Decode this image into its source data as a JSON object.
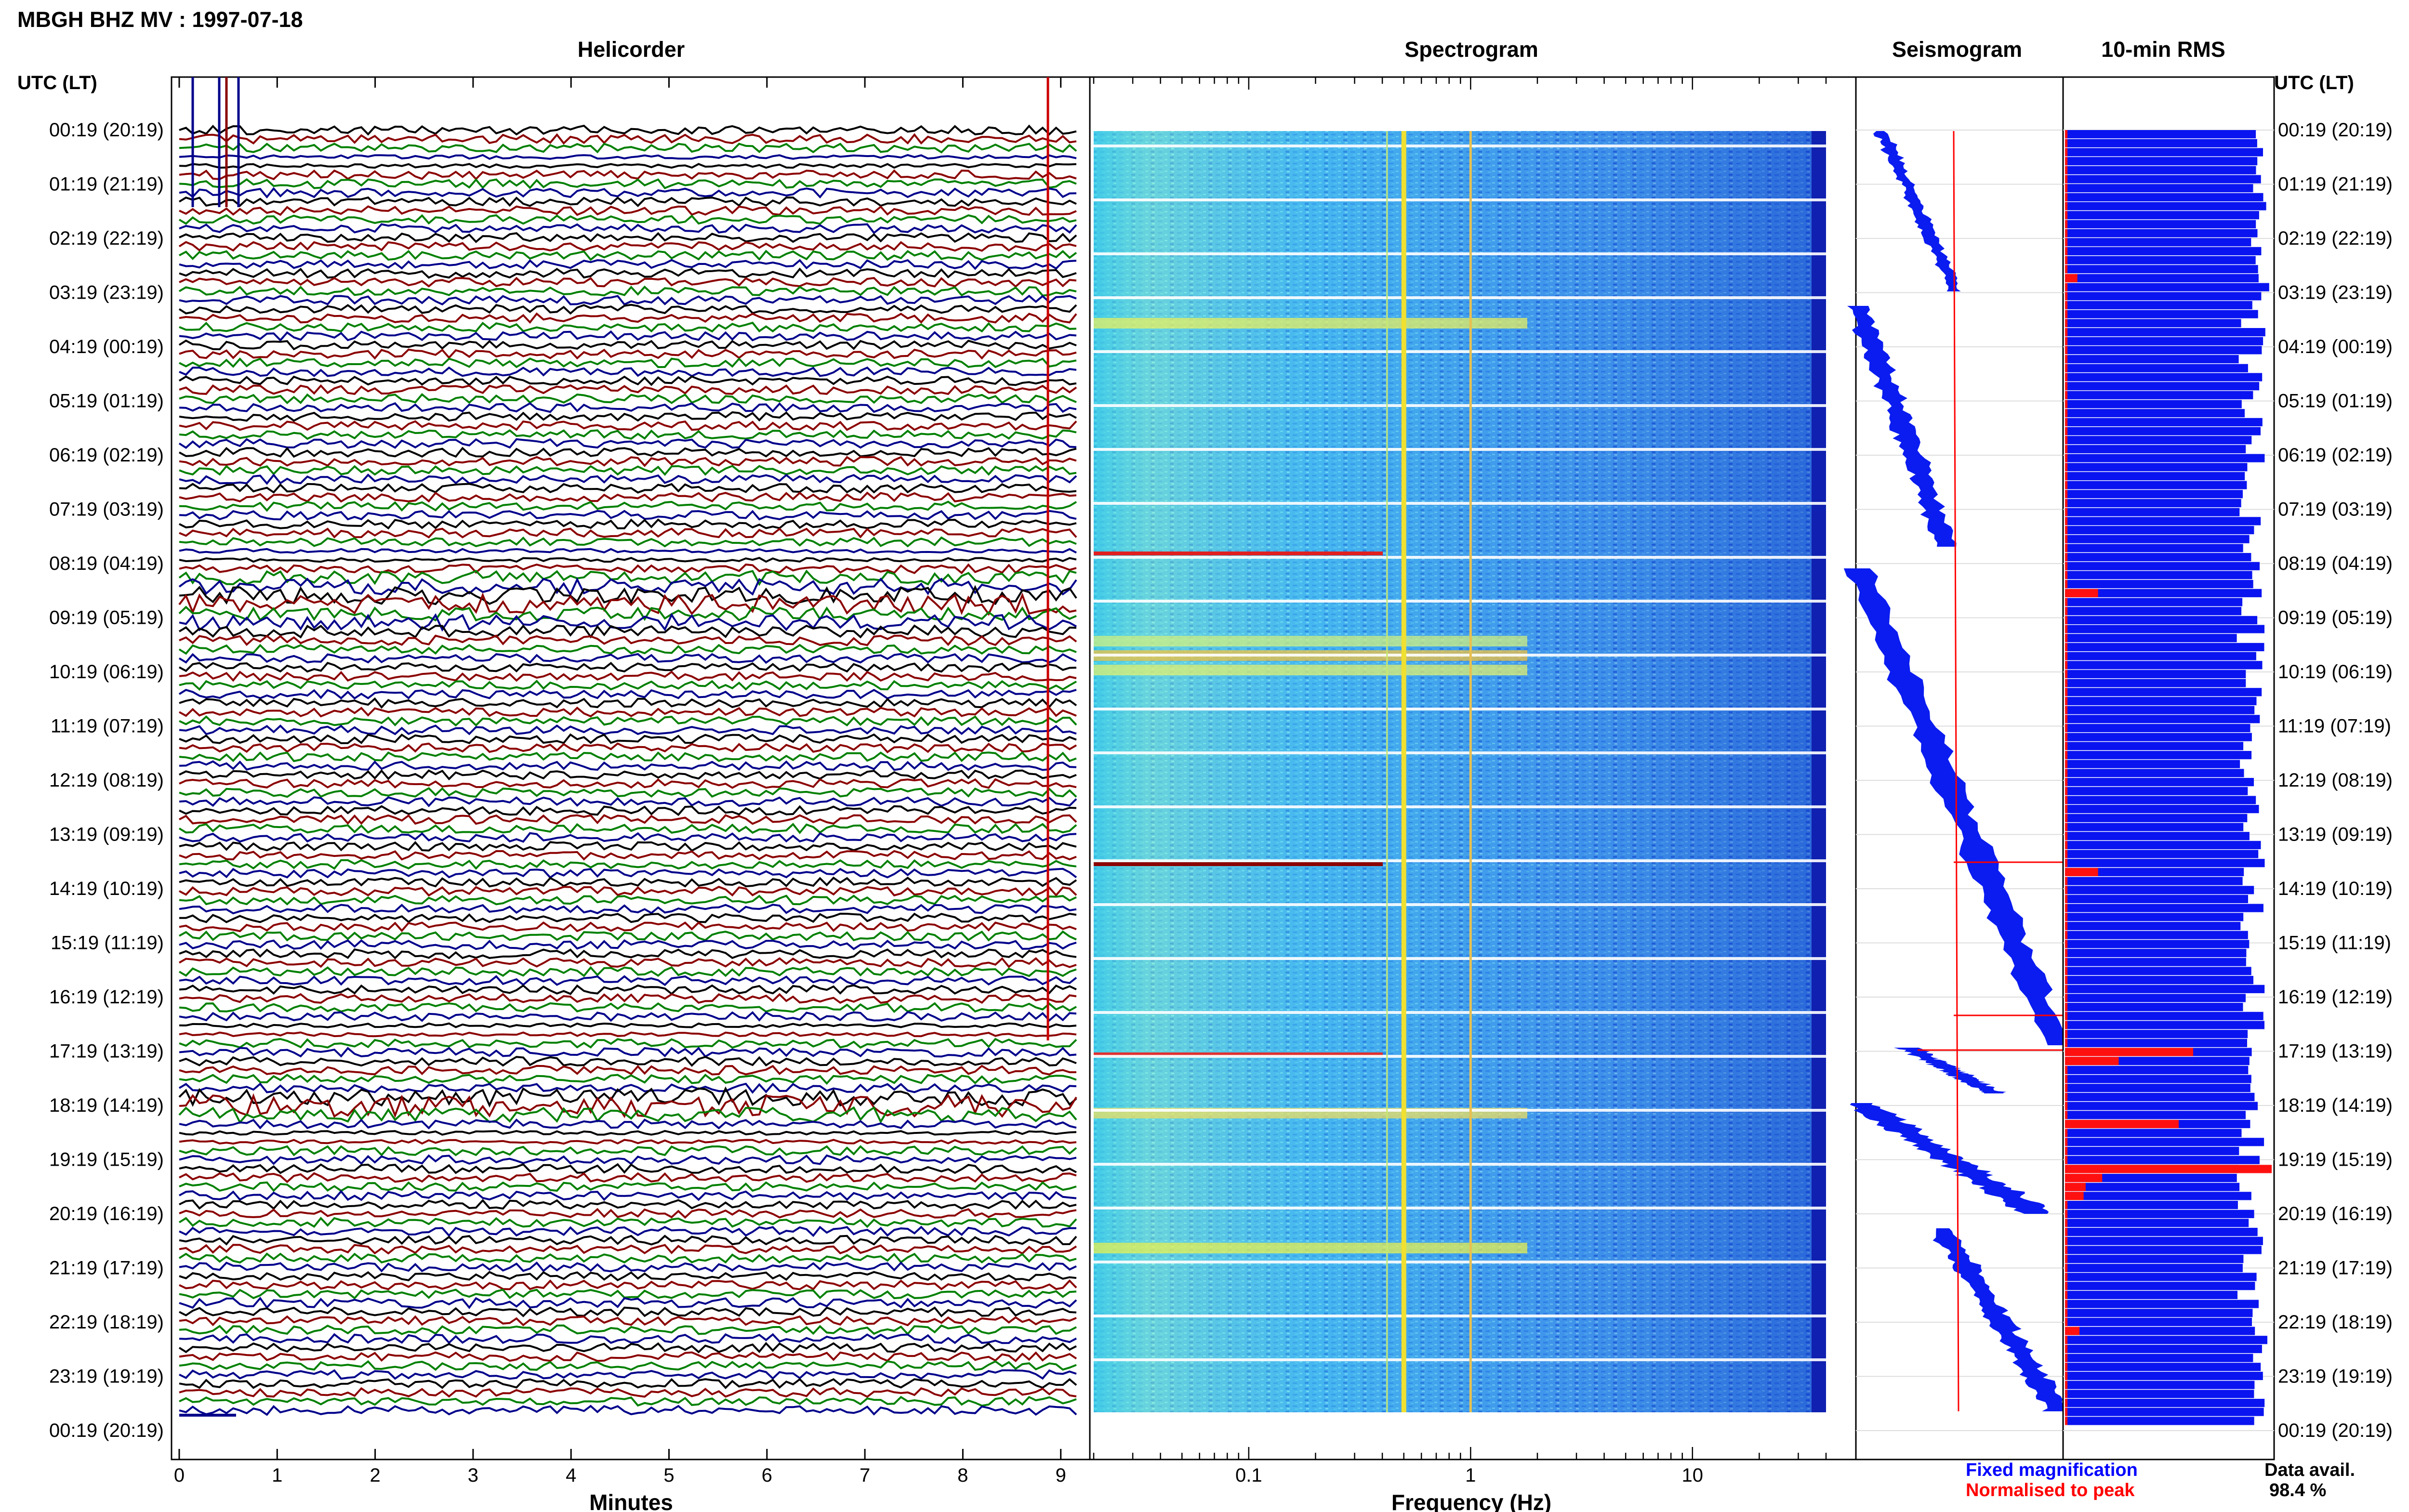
{
  "header": {
    "title": "MBGH BHZ MV : 1997-07-18",
    "time_axis_label": "UTC (LT)"
  },
  "panels": {
    "helicorder_title": "Helicorder",
    "spectrogram_title": "Spectrogram",
    "seismogram_title": "Seismogram",
    "rms_title": "10-min RMS"
  },
  "row_labels": [
    "00:19 (20:19)",
    "01:19 (21:19)",
    "02:19 (22:19)",
    "03:19 (23:19)",
    "04:19 (00:19)",
    "05:19 (01:19)",
    "06:19 (02:19)",
    "07:19 (03:19)",
    "08:19 (04:19)",
    "09:19 (05:19)",
    "10:19 (06:19)",
    "11:19 (07:19)",
    "12:19 (08:19)",
    "13:19 (09:19)",
    "14:19 (10:19)",
    "15:19 (11:19)",
    "16:19 (12:19)",
    "17:19 (13:19)",
    "18:19 (14:19)",
    "19:19 (15:19)",
    "20:19 (16:19)",
    "21:19 (17:19)",
    "22:19 (18:19)",
    "23:19 (19:19)",
    "00:19 (20:19)"
  ],
  "legend": {
    "fixed_label": "Fixed magnification",
    "normalised_label": "Normalised to peak",
    "fixed_color": "#0000ff",
    "normalised_color": "#ff0000"
  },
  "availability": {
    "label": "Data avail.",
    "value": "98.4 %"
  },
  "chart_data": [
    {
      "type": "line",
      "title": "Helicorder",
      "xlabel": "Minutes",
      "xlim": [
        0,
        10
      ],
      "x_ticks": [
        "0",
        "1",
        "2",
        "3",
        "4",
        "5",
        "6",
        "7",
        "8",
        "9"
      ],
      "trace_colors": [
        "#000000",
        "#8b0000",
        "#008000",
        "#00008b"
      ],
      "rows_per_hour": 6,
      "ylabel": "UTC (LT)"
    },
    {
      "type": "heatmap",
      "title": "Spectrogram",
      "xlabel": "Frequency (Hz)",
      "xscale": "log",
      "xlim": [
        0.02,
        40
      ],
      "x_ticks": [
        "0.1",
        "1",
        "10"
      ],
      "colormap": [
        "#00008b",
        "#0000ff",
        "#00bfff",
        "#00ffff",
        "#ffff00",
        "#ff0000"
      ]
    },
    {
      "type": "line",
      "title": "Seismogram",
      "series": [
        {
          "name": "Fixed magnification",
          "color": "#0000ff"
        },
        {
          "name": "Normalised to peak",
          "color": "#ff0000"
        }
      ]
    },
    {
      "type": "bar",
      "title": "10-min RMS",
      "orientation": "horizontal",
      "bar_count": 144,
      "highlight_rows": [
        16,
        51,
        82,
        102,
        103,
        110,
        115,
        116,
        117,
        118,
        133
      ],
      "highlight_values": [
        0.06,
        0.16,
        0.16,
        0.62,
        0.26,
        0.55,
        1.0,
        0.18,
        0.1,
        0.09,
        0.07
      ]
    }
  ]
}
